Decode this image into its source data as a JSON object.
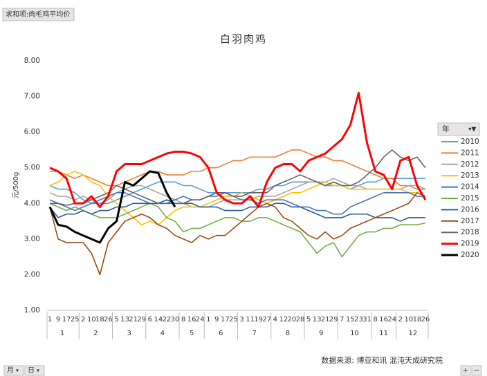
{
  "pivot_field_button": "求和项:肉毛鸡平均价",
  "row_field_buttons": [
    "月",
    "日"
  ],
  "zoom_buttons": [
    "+",
    "−"
  ],
  "legend_field": "年",
  "chart_data": {
    "type": "line",
    "title": "白羽肉鸡",
    "y_label": "元/500g",
    "source": "数据来源: 博亚和讯 混沌天成研究院",
    "categories": [
      "1",
      "9",
      "17",
      "25",
      "2",
      "10",
      "18",
      "26",
      "5",
      "13",
      "21",
      "29",
      "6",
      "14",
      "22",
      "30",
      "8",
      "16",
      "24",
      "1",
      "9",
      "17",
      "25",
      "3",
      "11",
      "19",
      "27",
      "4",
      "12",
      "20",
      "28",
      "5",
      "13",
      "21",
      "29",
      "7",
      "15",
      "23",
      "31",
      "8",
      "16",
      "24",
      "2",
      "10",
      "18",
      "26"
    ],
    "x_groups": [
      {
        "label": "1",
        "span": 4
      },
      {
        "label": "2",
        "span": 4
      },
      {
        "label": "3",
        "span": 4
      },
      {
        "label": "4",
        "span": 4
      },
      {
        "label": "5",
        "span": 3
      },
      {
        "label": "6",
        "span": 4
      },
      {
        "label": "7",
        "span": 4
      },
      {
        "label": "8",
        "span": 4
      },
      {
        "label": "9",
        "span": 4
      },
      {
        "label": "10",
        "span": 4
      },
      {
        "label": "11",
        "span": 3
      },
      {
        "label": "12",
        "span": 4
      }
    ],
    "ylim": [
      1,
      8
    ],
    "yticks": [
      {
        "value": 1,
        "label": "1.00"
      },
      {
        "value": 2,
        "label": "2.00"
      },
      {
        "value": 3,
        "label": "3.00"
      },
      {
        "value": 4,
        "label": "4.00"
      },
      {
        "value": 5,
        "label": "5.00"
      },
      {
        "value": 6,
        "label": "6.00"
      },
      {
        "value": 7,
        "label": "7.00"
      },
      {
        "value": 8,
        "label": "8.00"
      }
    ],
    "grid": false,
    "series": [
      {
        "name": "2010",
        "color": "#5b9bd5",
        "values": [
          4.5,
          4.4,
          4.4,
          4.3,
          4.1,
          4.0,
          4.0,
          4.0,
          4.1,
          4.2,
          4.3,
          4.4,
          4.5,
          4.6,
          4.6,
          4.6,
          4.5,
          4.5,
          4.4,
          4.3,
          4.3,
          4.3,
          4.3,
          4.3,
          4.3,
          4.4,
          4.4,
          4.5,
          4.5,
          4.6,
          4.6,
          4.6,
          4.6,
          4.5,
          4.5,
          4.5,
          4.4,
          4.5,
          4.6,
          4.6,
          4.7,
          4.7,
          4.7,
          4.7,
          4.7,
          4.7
        ]
      },
      {
        "name": "2011",
        "color": "#ed7d31",
        "values": [
          4.9,
          4.9,
          4.8,
          4.7,
          4.8,
          4.7,
          4.6,
          4.5,
          4.5,
          4.6,
          4.7,
          4.8,
          4.9,
          4.9,
          4.8,
          4.8,
          4.8,
          4.9,
          4.9,
          5.0,
          5.0,
          5.1,
          5.2,
          5.2,
          5.3,
          5.3,
          5.3,
          5.3,
          5.4,
          5.5,
          5.5,
          5.4,
          5.3,
          5.3,
          5.2,
          5.2,
          5.1,
          5.0,
          4.9,
          4.8,
          4.7,
          4.7,
          4.5,
          4.5,
          4.4,
          4.4
        ]
      },
      {
        "name": "2012",
        "color": "#a5a5a5",
        "values": [
          4.3,
          4.2,
          4.2,
          4.1,
          4.2,
          4.1,
          4.0,
          4.1,
          4.3,
          4.4,
          4.5,
          4.5,
          4.4,
          4.3,
          4.2,
          4.1,
          4.0,
          3.9,
          3.9,
          3.9,
          4.0,
          4.1,
          4.1,
          4.1,
          4.1,
          4.2,
          4.2,
          4.2,
          4.3,
          4.4,
          4.5,
          4.6,
          4.6,
          4.6,
          4.7,
          4.6,
          4.5,
          4.5,
          4.4,
          4.4,
          4.4,
          4.4,
          4.4,
          4.5,
          4.5,
          4.4
        ]
      },
      {
        "name": "2013",
        "color": "#ffc000",
        "values": [
          4.5,
          4.6,
          4.8,
          4.9,
          4.8,
          4.6,
          4.5,
          4.2,
          4.0,
          3.8,
          3.6,
          3.4,
          3.5,
          3.4,
          3.6,
          3.8,
          3.9,
          3.9,
          3.9,
          4.0,
          4.1,
          4.2,
          4.2,
          4.3,
          4.2,
          4.1,
          4.0,
          4.1,
          4.2,
          4.3,
          4.3,
          4.4,
          4.5,
          4.6,
          4.5,
          4.5,
          4.4,
          4.4,
          4.4,
          4.4,
          4.4,
          4.4,
          4.4,
          4.3,
          4.3,
          4.2
        ]
      },
      {
        "name": "2014",
        "color": "#4472c4",
        "values": [
          4.1,
          4.0,
          3.9,
          3.8,
          3.9,
          4.0,
          4.1,
          4.2,
          4.3,
          4.3,
          4.2,
          4.1,
          4.0,
          4.0,
          4.0,
          4.1,
          4.2,
          4.1,
          4.1,
          4.2,
          4.2,
          4.3,
          4.2,
          4.1,
          4.1,
          4.0,
          4.1,
          4.1,
          4.1,
          4.0,
          3.9,
          3.9,
          3.8,
          3.8,
          3.7,
          3.7,
          3.9,
          4.0,
          4.1,
          4.2,
          4.3,
          4.3,
          4.3,
          4.3,
          4.2,
          4.2
        ]
      },
      {
        "name": "2015",
        "color": "#70ad47",
        "values": [
          4.0,
          3.9,
          3.8,
          3.9,
          3.8,
          3.7,
          3.6,
          3.6,
          3.6,
          3.7,
          3.8,
          3.9,
          4.0,
          3.9,
          3.6,
          3.5,
          3.2,
          3.3,
          3.3,
          3.4,
          3.5,
          3.6,
          3.6,
          3.5,
          3.5,
          3.6,
          3.6,
          3.5,
          3.4,
          3.3,
          3.2,
          2.9,
          2.6,
          2.8,
          2.9,
          2.5,
          2.8,
          3.1,
          3.2,
          3.2,
          3.3,
          3.3,
          3.4,
          3.4,
          3.4,
          3.45
        ]
      },
      {
        "name": "2016",
        "color": "#255e91",
        "values": [
          3.9,
          3.6,
          3.7,
          3.7,
          3.8,
          3.7,
          3.8,
          3.8,
          3.9,
          3.9,
          4.0,
          4.0,
          4.0,
          4.0,
          4.1,
          4.0,
          4.0,
          4.0,
          3.9,
          3.9,
          3.9,
          3.8,
          3.8,
          3.8,
          3.9,
          3.9,
          3.9,
          4.0,
          4.0,
          3.9,
          3.9,
          3.8,
          3.7,
          3.6,
          3.6,
          3.6,
          3.7,
          3.7,
          3.7,
          3.6,
          3.6,
          3.6,
          3.5,
          3.6,
          3.6,
          3.6
        ]
      },
      {
        "name": "2017",
        "color": "#9e480e",
        "values": [
          3.9,
          3.0,
          2.9,
          2.9,
          2.9,
          2.6,
          2.0,
          2.9,
          3.2,
          3.5,
          3.6,
          3.7,
          3.6,
          3.4,
          3.3,
          3.1,
          3.0,
          2.9,
          3.1,
          3.0,
          3.1,
          3.1,
          3.3,
          3.5,
          3.7,
          3.9,
          4.0,
          3.9,
          3.6,
          3.5,
          3.3,
          3.1,
          3.0,
          3.2,
          3.0,
          3.1,
          3.3,
          3.4,
          3.5,
          3.6,
          3.7,
          3.8,
          3.9,
          4.0,
          4.3,
          4.2
        ]
      },
      {
        "name": "2018",
        "color": "#636363",
        "values": [
          4.0,
          4.0,
          3.95,
          4.0,
          4.0,
          4.1,
          4.2,
          4.3,
          4.5,
          4.4,
          4.3,
          4.2,
          4.1,
          4.0,
          4.0,
          4.0,
          4.0,
          4.1,
          4.1,
          4.2,
          4.3,
          4.3,
          4.2,
          4.2,
          4.3,
          4.3,
          4.3,
          4.5,
          4.6,
          4.7,
          4.8,
          4.7,
          4.6,
          4.5,
          4.6,
          4.5,
          4.5,
          4.6,
          4.8,
          5.0,
          5.3,
          5.5,
          5.3,
          5.2,
          5.3,
          5.0
        ]
      },
      {
        "name": "2019",
        "color": "#ff0000",
        "values": [
          5.0,
          4.9,
          4.7,
          4.0,
          4.0,
          4.2,
          3.9,
          4.2,
          4.9,
          5.1,
          5.1,
          5.1,
          5.2,
          5.3,
          5.4,
          5.45,
          5.45,
          5.4,
          5.3,
          5.0,
          4.3,
          4.1,
          4.0,
          4.0,
          4.2,
          3.9,
          4.6,
          5.0,
          5.1,
          5.1,
          4.9,
          5.2,
          5.3,
          5.4,
          5.6,
          5.8,
          6.2,
          7.1,
          5.7,
          4.9,
          4.8,
          4.4,
          5.2,
          5.3,
          4.5,
          4.1
        ]
      },
      {
        "name": "2020",
        "color": "#000000",
        "values": [
          3.9,
          3.4,
          3.35,
          3.2,
          3.1,
          3.0,
          2.9,
          3.3,
          3.5,
          4.6,
          4.5,
          4.7,
          4.9,
          4.85,
          4.3,
          3.9,
          null,
          null,
          null,
          null,
          null,
          null,
          null,
          null,
          null,
          null,
          null,
          null,
          null,
          null,
          null,
          null,
          null,
          null,
          null,
          null,
          null,
          null,
          null,
          null,
          null,
          null,
          null,
          null,
          null,
          null
        ]
      }
    ]
  }
}
